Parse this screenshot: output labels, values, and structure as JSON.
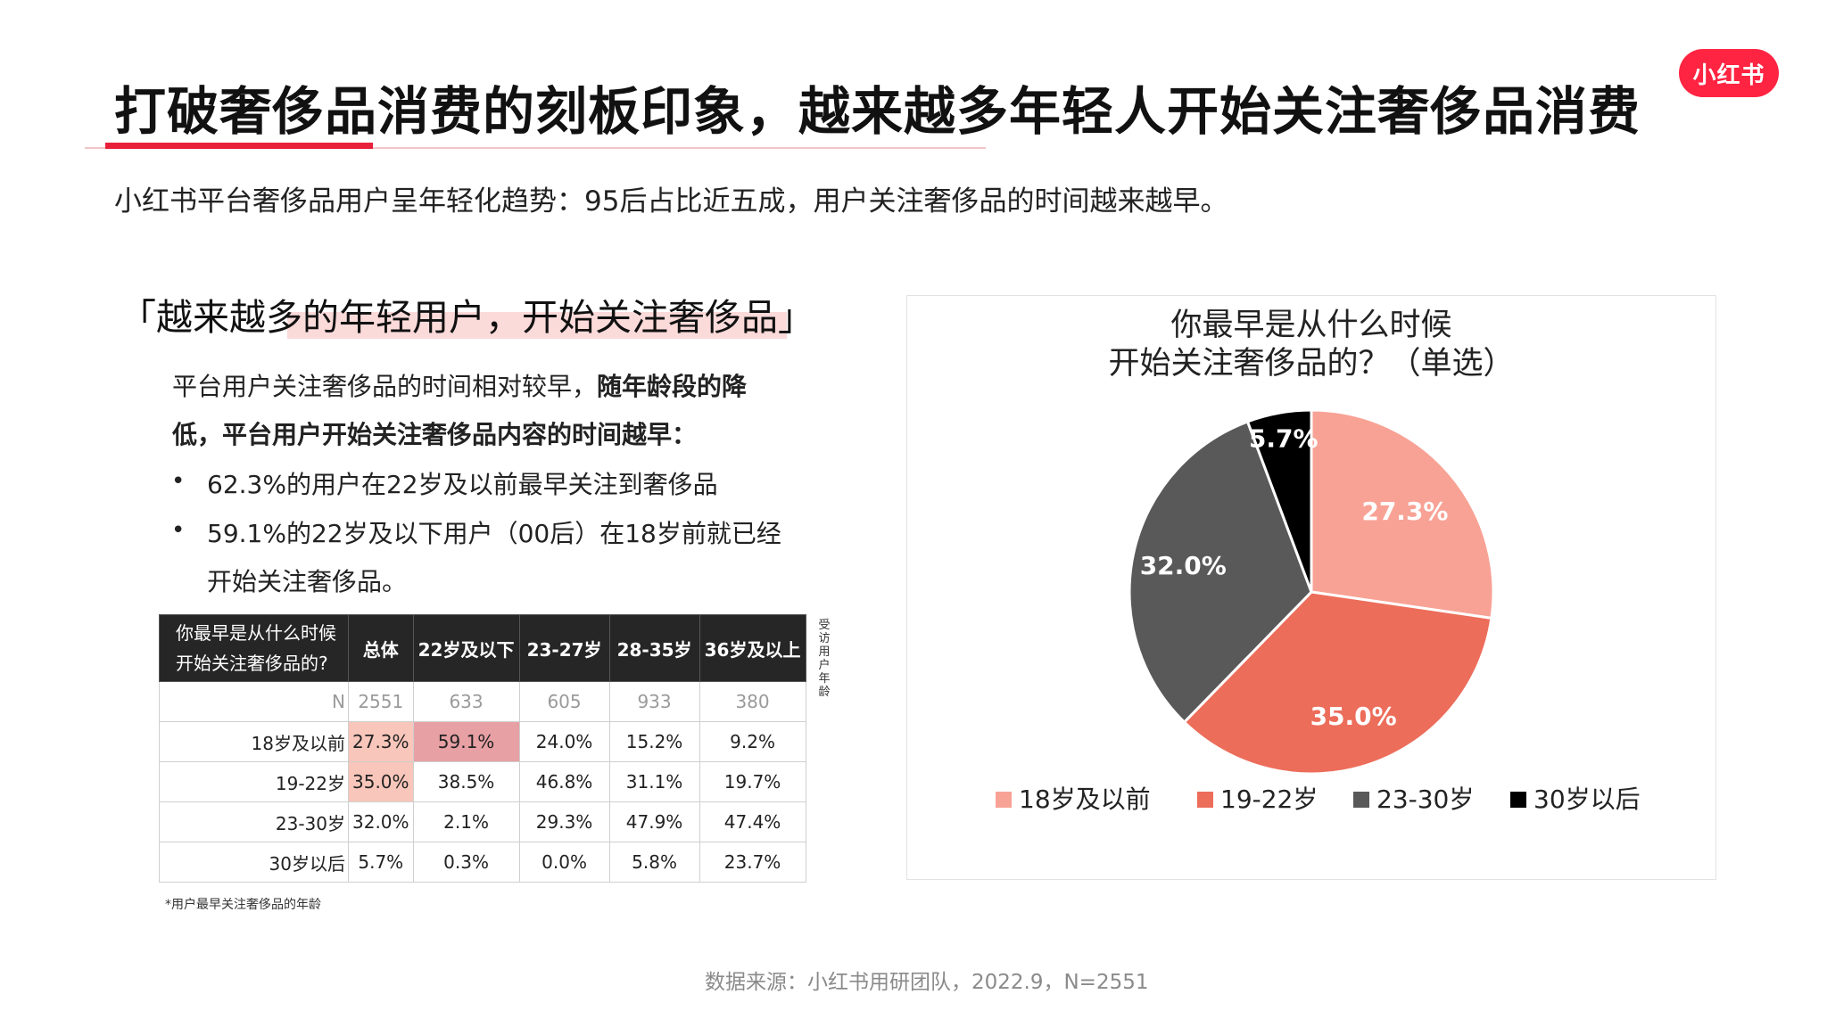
{
  "header": {
    "title": "打破奢侈品消费的刻板印象，越来越多年轻人开始关注奢侈品消费",
    "logo_text": "小红书",
    "subtitle": "小红书平台奢侈品用户呈年轻化趋势：95后占比近五成，用户关注奢侈品的时间越来越早。"
  },
  "left": {
    "quote": "「越来越多的年轻用户，开始关注奢侈品」",
    "paragraph": {
      "line1_normal": "平台用户关注奢侈品的时间相对较早，",
      "line1_bold": "随年龄段的降",
      "line2_bold": "低，平台用户开始关注奢侈品内容的时间越早："
    },
    "bullets": [
      "62.3%的用户在22岁及以前最早关注到奢侈品",
      "59.1%的22岁及以下用户（00后）在18岁前就已经",
      "开始关注奢侈品。"
    ],
    "bullet_symbol": "•"
  },
  "table": {
    "question": [
      "你最早是从什么时候",
      "开始关注奢侈品的?"
    ],
    "columns": [
      "总体",
      "22岁及以下",
      "23-27岁",
      "28-35岁",
      "36岁及以上"
    ],
    "n_label": "N",
    "n_values": [
      "2551",
      "633",
      "605",
      "933",
      "380"
    ],
    "rows": [
      {
        "label": "18岁及以前",
        "values": [
          "27.3%",
          "59.1%",
          "24.0%",
          "15.2%",
          "9.2%"
        ]
      },
      {
        "label": "19-22岁",
        "values": [
          "35.0%",
          "38.5%",
          "46.8%",
          "31.1%",
          "19.7%"
        ]
      },
      {
        "label": "23-30岁",
        "values": [
          "32.0%",
          "2.1%",
          "29.3%",
          "47.9%",
          "47.4%"
        ]
      },
      {
        "label": "30岁以后",
        "values": [
          "5.7%",
          "0.3%",
          "0.0%",
          "5.8%",
          "23.7%"
        ]
      }
    ],
    "side_note": "受访用户年龄",
    "footnote": "*用户最早关注奢侈品的年龄",
    "highlight_colors": {
      "dark": "#e7a0a4",
      "light": "#f8c6ba"
    }
  },
  "chart_data": {
    "type": "pie",
    "title": [
      "你最早是从什么时候",
      "开始关注奢侈品的？（单选）"
    ],
    "labels": [
      "18岁及以前",
      "19-22岁",
      "23-30岁",
      "30岁以后"
    ],
    "values": [
      27.3,
      35.0,
      32.0,
      5.7
    ],
    "value_labels": [
      "27.3%",
      "35.0%",
      "32.0%",
      "5.7%"
    ],
    "colors": [
      "#f8a295",
      "#ec6d5a",
      "#595959",
      "#000000"
    ],
    "start_angle": "12 o'clock, clockwise",
    "legend_position": "bottom"
  },
  "footer": {
    "source": "数据来源：小红书用研团队，2022.9，N=2551"
  },
  "colors": {
    "accent_red": "#e8203a",
    "logo_red": "#ff2442",
    "table_header": "#262626"
  }
}
